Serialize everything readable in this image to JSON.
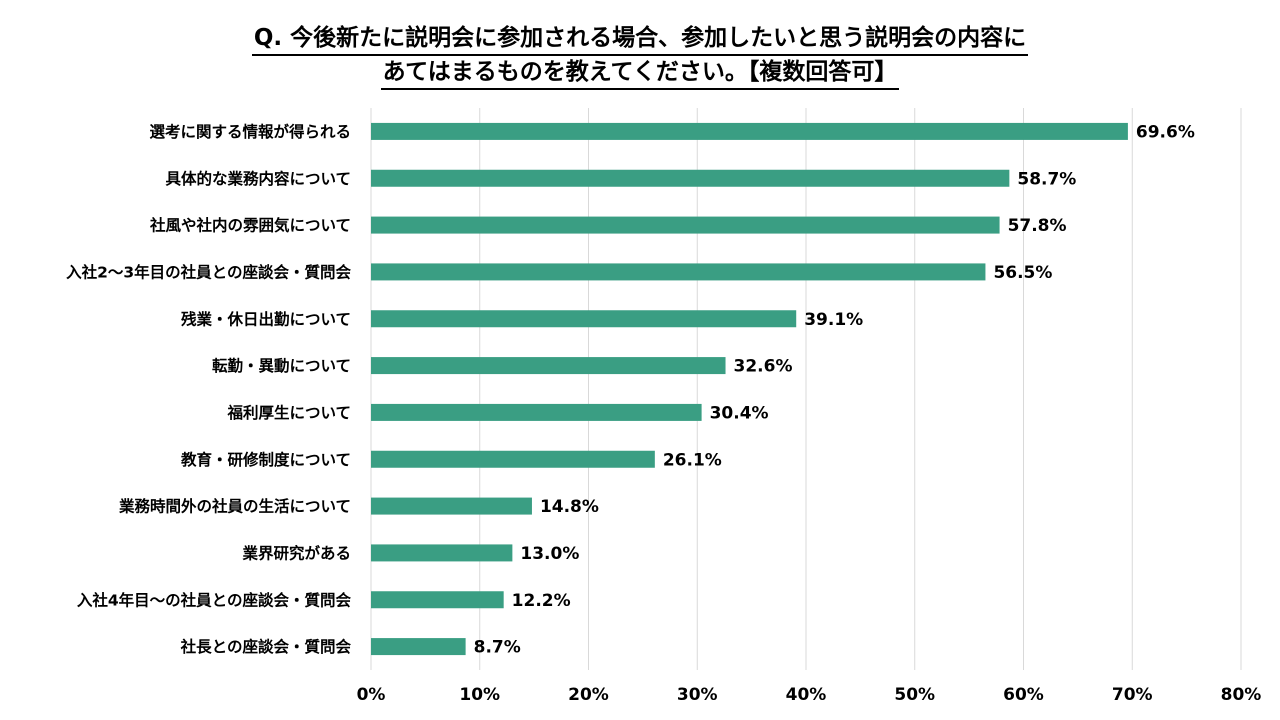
{
  "title": {
    "line1": "Q. 今後新たに説明会に参加される場合、参加したいと思う説明会の内容に",
    "line2": "あてはまるものを教えてください。【複数回答可】"
  },
  "chart_data": {
    "type": "bar",
    "orientation": "horizontal",
    "categories": [
      "選考に関する情報が得られる",
      "具体的な業務内容について",
      "社風や社内の雰囲気について",
      "入社2～3年目の社員との座談会・質問会",
      "残業・休日出勤について",
      "転勤・異動について",
      "福利厚生について",
      "教育・研修制度について",
      "業務時間外の社員の生活について",
      "業界研究がある",
      "入社4年目～の社員との座談会・質問会",
      "社長との座談会・質問会"
    ],
    "values": [
      69.6,
      58.7,
      57.8,
      56.5,
      39.1,
      32.6,
      30.4,
      26.1,
      14.8,
      13.0,
      12.2,
      8.7
    ],
    "value_labels": [
      "69.6%",
      "58.7%",
      "57.8%",
      "56.5%",
      "39.1%",
      "32.6%",
      "30.4%",
      "26.1%",
      "14.8%",
      "13.0%",
      "12.2%",
      "8.7%"
    ],
    "xlim": [
      0,
      80
    ],
    "ticks": [
      "0%",
      "10%",
      "20%",
      "30%",
      "40%",
      "50%",
      "60%",
      "70%",
      "80%"
    ],
    "grid": true,
    "bar_color": "#3a9e83",
    "grid_color": "#d9d9d9"
  }
}
